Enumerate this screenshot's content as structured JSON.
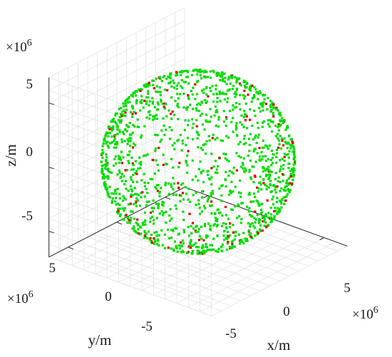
{
  "chart_data": {
    "type": "scatter",
    "projection": "3d",
    "title": "",
    "xlabel": "x/m",
    "ylabel": "y/m",
    "zlabel": "z/m",
    "xlim": [
      -7000000,
      7000000
    ],
    "ylim": [
      -7000000,
      7000000
    ],
    "zlim": [
      -7000000,
      7000000
    ],
    "x_ticks": [
      "-5",
      "0",
      "5"
    ],
    "y_ticks": [
      "-5",
      "0",
      "5"
    ],
    "z_ticks": [
      "-5",
      "0",
      "5"
    ],
    "x_exponent": "×10",
    "y_exponent": "×10",
    "z_exponent": "×10",
    "exponent_power": "6",
    "grid": true,
    "sphere_radius": 6400000,
    "series": [
      {
        "color": "#00dd00",
        "marker": "square",
        "point_count": 1500
      },
      {
        "color": "#e00000",
        "marker": "square",
        "point_count": 130
      }
    ]
  }
}
